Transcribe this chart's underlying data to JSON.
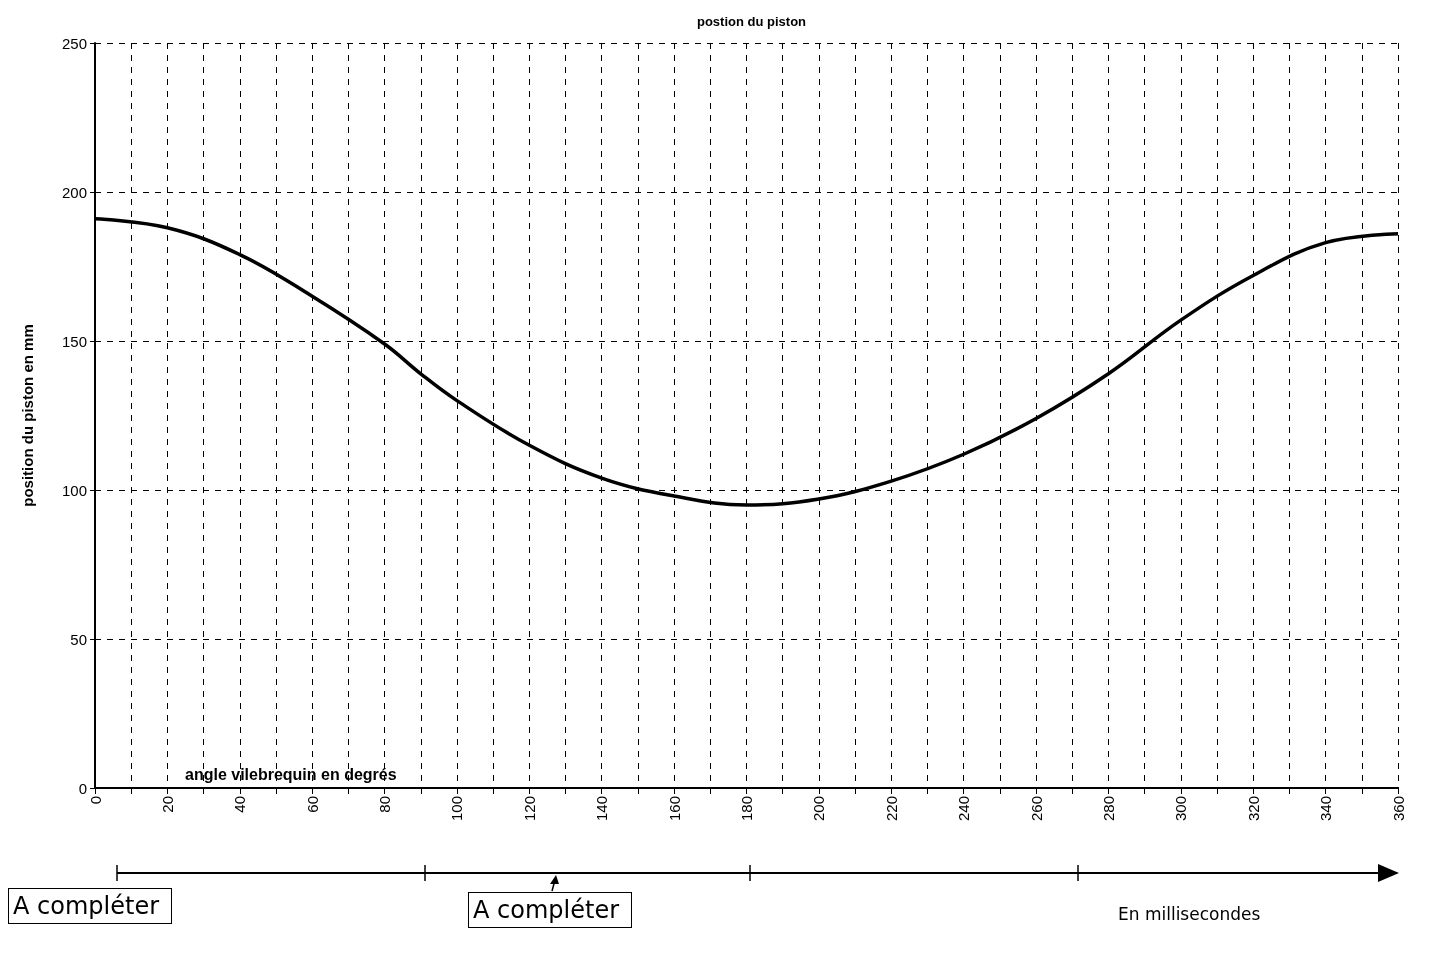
{
  "chart_data": {
    "type": "line",
    "title": "postion du piston",
    "xlabel": "angle vilebrequin en degrés",
    "ylabel": "position du piston en mm",
    "x": [
      0,
      20,
      40,
      60,
      80,
      90,
      100,
      120,
      140,
      160,
      180,
      200,
      220,
      240,
      260,
      280,
      300,
      320,
      340,
      360
    ],
    "series": [
      {
        "color": "#000000",
        "values": [
          191,
          188,
          179,
          165,
          149,
          139,
          130,
          115,
          104,
          98,
          95,
          97,
          103,
          112,
          124,
          139,
          157,
          172,
          183,
          186
        ]
      }
    ],
    "xlim": [
      0,
      360
    ],
    "xticks": [
      0,
      {
        "value": 10,
        "label": null
      },
      20,
      {
        "value": 30,
        "label": null
      },
      40,
      {
        "value": 50,
        "label": null
      },
      60,
      {
        "value": 70,
        "label": null
      },
      80,
      {
        "value": 90,
        "label": null
      },
      100,
      {
        "value": 110,
        "label": null
      },
      120,
      {
        "value": 130,
        "label": null
      },
      140,
      {
        "value": 150,
        "label": null
      },
      160,
      {
        "value": 170,
        "label": null
      },
      180,
      {
        "value": 190,
        "label": null
      },
      200,
      {
        "value": 210,
        "label": null
      },
      220,
      {
        "value": 230,
        "label": null
      },
      240,
      {
        "value": 250,
        "label": null
      },
      260,
      {
        "value": 270,
        "label": null
      },
      280,
      {
        "value": 290,
        "label": null
      },
      300,
      {
        "value": 310,
        "label": null
      },
      320,
      {
        "value": 330,
        "label": null
      },
      340,
      {
        "value": 350,
        "label": null
      },
      360
    ],
    "ylim": [
      0,
      250
    ],
    "yticks": [
      0,
      50,
      100,
      150,
      200,
      250
    ],
    "grid": true,
    "marker": "none",
    "line_style": "solid",
    "annotations": [
      "A compléter",
      "A compléter",
      "En millisecondes"
    ]
  }
}
